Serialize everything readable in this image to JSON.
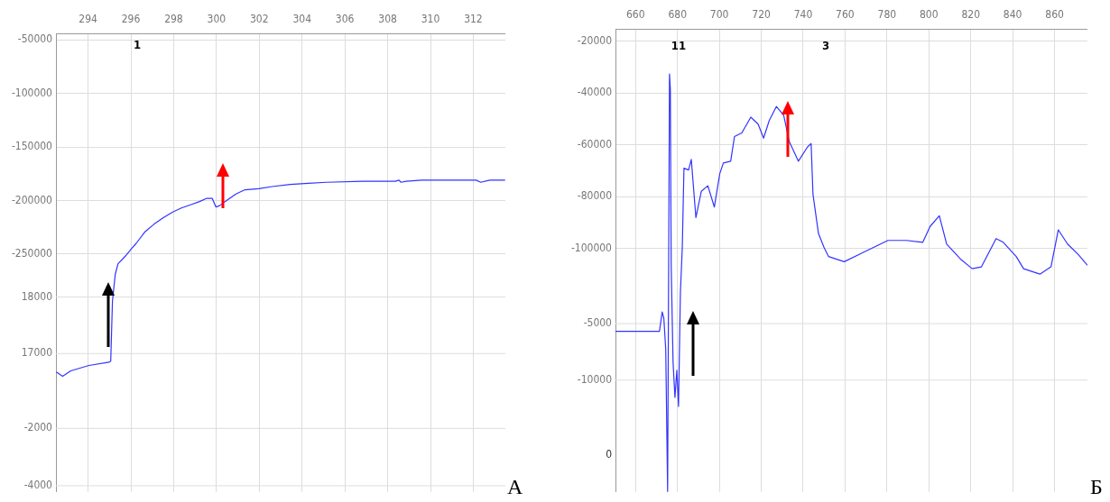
{
  "chart_data": [
    {
      "type": "line",
      "xlim": [
        292.5,
        313.5
      ],
      "xticks": [
        294,
        296,
        298,
        300,
        302,
        304,
        306,
        308,
        310,
        312
      ],
      "ylim": [
        -472000,
        -44000
      ],
      "yticks": [
        -50000,
        -100000,
        -150000,
        -200000,
        -250000
      ],
      "y2lim": [
        14550,
        22670
      ],
      "y2ticks": [
        18000,
        17000
      ],
      "y3lim": [
        -4215,
        11780
      ],
      "y3ticks": [
        -2000,
        -4000
      ],
      "grid": true,
      "legend": false,
      "marker": "none",
      "line_style": "solid",
      "series": [
        {
          "color": "#3333ff",
          "x": [
            292.52,
            292.81,
            293.19,
            294.04,
            294.97,
            295.06,
            295.14,
            295.27,
            295.4,
            295.74,
            296.03,
            296.25,
            296.67,
            297.09,
            297.52,
            297.94,
            298.36,
            298.79,
            299.21,
            299.55,
            299.8,
            299.97,
            300.14,
            300.4,
            300.91,
            301.33,
            301.97,
            302.6,
            303.45,
            304.3,
            305.14,
            306.84,
            308.36,
            308.53,
            308.62,
            308.87,
            309.59,
            312.13,
            312.35,
            312.77,
            313.49
          ],
          "values": [
            -360000,
            -364000,
            -359000,
            -354000,
            -351000,
            -350000,
            -294000,
            -269000,
            -259000,
            -252000,
            -245000,
            -240000,
            -229000,
            -222000,
            -216000,
            -211000,
            -207000,
            -204000,
            -201000,
            -198000,
            -198000,
            -206000,
            -205000,
            -201000,
            -194000,
            -190000,
            -189000,
            -187000,
            -185000,
            -184000,
            -183000,
            -182000,
            -182000,
            -181000,
            -183000,
            -182000,
            -181000,
            -181000,
            -183000,
            -181000,
            -181000
          ]
        }
      ],
      "annotations": [
        "1",
        "А"
      ]
    },
    {
      "type": "line",
      "xlim": [
        650.4,
        875.7
      ],
      "xticks": [
        660,
        680,
        700,
        720,
        740,
        760,
        780,
        800,
        820,
        840,
        860
      ],
      "ylim": [
        -194000,
        -15200
      ],
      "yticks": [
        -20000,
        -40000,
        -60000,
        -80000,
        -100000
      ],
      "y2lim": [
        -19900,
        21100
      ],
      "y2ticks": [
        -5000,
        -10000
      ],
      "grid": true,
      "legend": false,
      "marker": "none",
      "line_style": "solid",
      "series": [
        {
          "color": "#3333ff",
          "x": [
            650.4,
            671.4,
            672.7,
            673.5,
            674.4,
            675.3,
            676.2,
            676.6,
            677,
            677.9,
            678.8,
            679.7,
            680.5,
            681.4,
            682.3,
            683.1,
            685.3,
            686.6,
            688.8,
            691.4,
            694.5,
            697.6,
            700.2,
            701.9,
            705.4,
            707.2,
            710.7,
            715,
            718.5,
            721.1,
            723.8,
            727.2,
            730.7,
            733.4,
            737.7,
            742.1,
            743.8,
            744.7,
            747.3,
            750,
            752.1,
            759.6,
            768.3,
            780.5,
            789.3,
            797.1,
            800.6,
            805,
            808.5,
            815.5,
            820.7,
            825.1,
            832.1,
            835.5,
            841.7,
            845.2,
            853,
            858.3,
            861.8,
            866.2,
            871.4,
            875.7
          ],
          "values": [
            -132000,
            -132000,
            -124500,
            -127000,
            -139000,
            -194000,
            -32600,
            -38400,
            -106500,
            -144000,
            -157500,
            -147000,
            -161000,
            -117000,
            -99700,
            -69000,
            -69700,
            -65600,
            -88100,
            -77900,
            -75800,
            -84000,
            -71100,
            -67000,
            -66300,
            -56800,
            -55400,
            -49300,
            -52000,
            -57400,
            -50600,
            -45200,
            -48600,
            -58800,
            -66300,
            -60800,
            -59500,
            -79200,
            -94200,
            -99700,
            -103100,
            -105100,
            -101700,
            -96900,
            -96900,
            -97600,
            -91500,
            -87400,
            -98300,
            -104400,
            -107800,
            -107100,
            -96200,
            -97600,
            -103100,
            -107800,
            -109900,
            -107100,
            -92800,
            -98300,
            -102400,
            -106500
          ]
        }
      ],
      "annotations": [
        "11",
        "3",
        "0",
        "Б"
      ]
    }
  ]
}
